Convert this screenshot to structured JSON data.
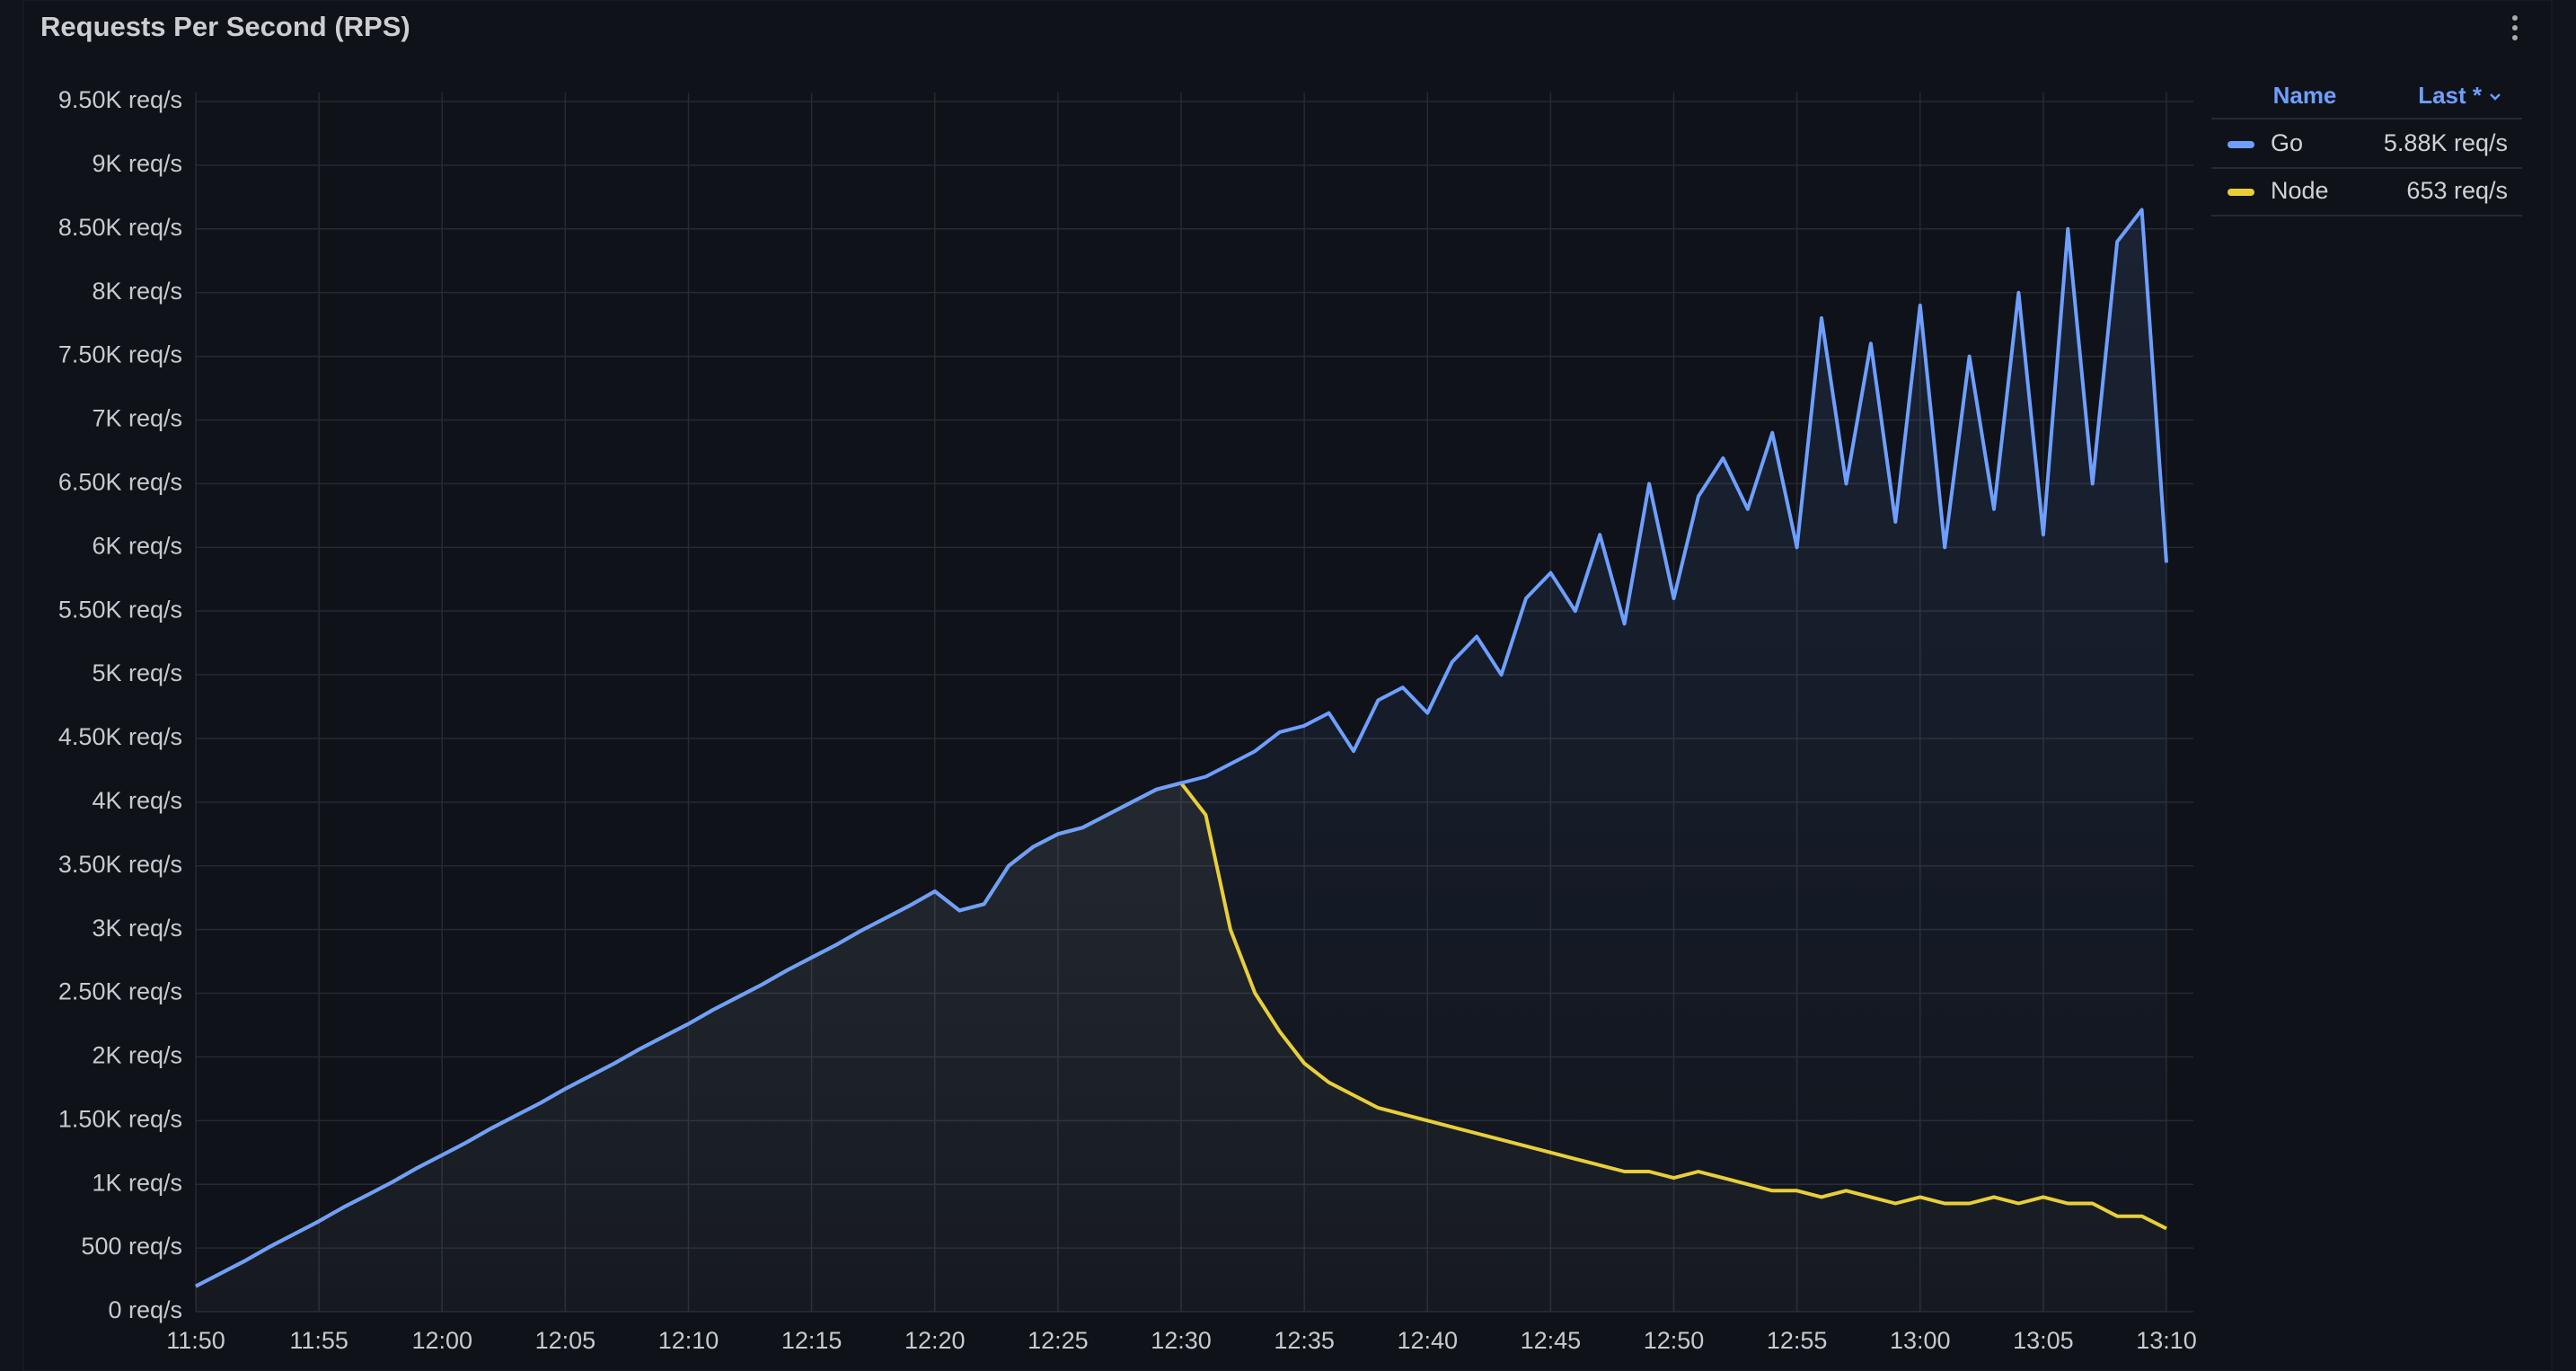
{
  "chart_data": {
    "type": "line",
    "title": "Requests Per Second (RPS)",
    "x": [
      "11:50",
      "11:51",
      "11:52",
      "11:53",
      "11:54",
      "11:55",
      "11:56",
      "11:57",
      "11:58",
      "11:59",
      "12:00",
      "12:01",
      "12:02",
      "12:03",
      "12:04",
      "12:05",
      "12:06",
      "12:07",
      "12:08",
      "12:09",
      "12:10",
      "12:11",
      "12:12",
      "12:13",
      "12:14",
      "12:15",
      "12:16",
      "12:17",
      "12:18",
      "12:19",
      "12:20",
      "12:21",
      "12:22",
      "12:23",
      "12:24",
      "12:25",
      "12:26",
      "12:27",
      "12:28",
      "12:29",
      "12:30",
      "12:31",
      "12:32",
      "12:33",
      "12:34",
      "12:35",
      "12:36",
      "12:37",
      "12:38",
      "12:39",
      "12:40",
      "12:41",
      "12:42",
      "12:43",
      "12:44",
      "12:45",
      "12:46",
      "12:47",
      "12:48",
      "12:49",
      "12:50",
      "12:51",
      "12:52",
      "12:53",
      "12:54",
      "12:55",
      "12:56",
      "12:57",
      "12:58",
      "12:59",
      "13:00",
      "13:01",
      "13:02",
      "13:03",
      "13:04",
      "13:05",
      "13:06",
      "13:07",
      "13:08",
      "13:09",
      "13:10"
    ],
    "series": [
      {
        "name": "Go",
        "color": "#6e9fff",
        "legend_value": "5.88K req/s",
        "values": [
          200,
          300,
          400,
          510,
          610,
          710,
          820,
          920,
          1020,
          1130,
          1230,
          1330,
          1440,
          1540,
          1640,
          1750,
          1850,
          1950,
          2060,
          2160,
          2260,
          2370,
          2470,
          2570,
          2680,
          2780,
          2880,
          2990,
          3090,
          3190,
          3300,
          3150,
          3200,
          3500,
          3650,
          3750,
          3800,
          3900,
          4000,
          4100,
          4150,
          4200,
          4300,
          4400,
          4550,
          4600,
          4700,
          4400,
          4800,
          4900,
          4700,
          5100,
          5300,
          5000,
          5600,
          5800,
          5500,
          6100,
          5400,
          6500,
          5600,
          6400,
          6700,
          6300,
          6900,
          6000,
          7800,
          6500,
          7600,
          6200,
          7900,
          6000,
          7500,
          6300,
          8000,
          6100,
          8500,
          6500,
          8400,
          8650,
          5880
        ]
      },
      {
        "name": "Node",
        "color": "#e8cf3a",
        "legend_value": "653 req/s",
        "values": [
          200,
          300,
          400,
          510,
          610,
          710,
          820,
          920,
          1020,
          1130,
          1230,
          1330,
          1440,
          1540,
          1640,
          1750,
          1850,
          1950,
          2060,
          2160,
          2260,
          2370,
          2470,
          2570,
          2680,
          2780,
          2880,
          2990,
          3090,
          3190,
          3300,
          3150,
          3200,
          3500,
          3650,
          3750,
          3800,
          3900,
          4000,
          4100,
          4150,
          3900,
          3000,
          2500,
          2200,
          1950,
          1800,
          1700,
          1600,
          1550,
          1500,
          1450,
          1400,
          1350,
          1300,
          1250,
          1200,
          1150,
          1100,
          1100,
          1050,
          1100,
          1050,
          1000,
          950,
          950,
          900,
          950,
          900,
          850,
          900,
          850,
          850,
          900,
          850,
          900,
          850,
          850,
          750,
          750,
          653
        ]
      }
    ],
    "xlim": [
      "11:50",
      "13:10"
    ],
    "xticks": [
      "11:50",
      "11:55",
      "12:00",
      "12:05",
      "12:10",
      "12:15",
      "12:20",
      "12:25",
      "12:30",
      "12:35",
      "12:40",
      "12:45",
      "12:50",
      "12:55",
      "13:00",
      "13:05",
      "13:10"
    ],
    "ylim": [
      0,
      9500
    ],
    "yticks": [
      {
        "value": 0,
        "label": "0 req/s"
      },
      {
        "value": 500,
        "label": "500 req/s"
      },
      {
        "value": 1000,
        "label": "1K req/s"
      },
      {
        "value": 1500,
        "label": "1.50K req/s"
      },
      {
        "value": 2000,
        "label": "2K req/s"
      },
      {
        "value": 2500,
        "label": "2.50K req/s"
      },
      {
        "value": 3000,
        "label": "3K req/s"
      },
      {
        "value": 3500,
        "label": "3.50K req/s"
      },
      {
        "value": 4000,
        "label": "4K req/s"
      },
      {
        "value": 4500,
        "label": "4.50K req/s"
      },
      {
        "value": 5000,
        "label": "5K req/s"
      },
      {
        "value": 5500,
        "label": "5.50K req/s"
      },
      {
        "value": 6000,
        "label": "6K req/s"
      },
      {
        "value": 6500,
        "label": "6.50K req/s"
      },
      {
        "value": 7000,
        "label": "7K req/s"
      },
      {
        "value": 7500,
        "label": "7.50K req/s"
      },
      {
        "value": 8000,
        "label": "8K req/s"
      },
      {
        "value": 8500,
        "label": "8.50K req/s"
      },
      {
        "value": 9000,
        "label": "9K req/s"
      },
      {
        "value": 9500,
        "label": "9.50K req/s"
      }
    ],
    "grid": true,
    "legend": {
      "name_header": "Name",
      "value_header": "Last *",
      "position": "right"
    }
  }
}
